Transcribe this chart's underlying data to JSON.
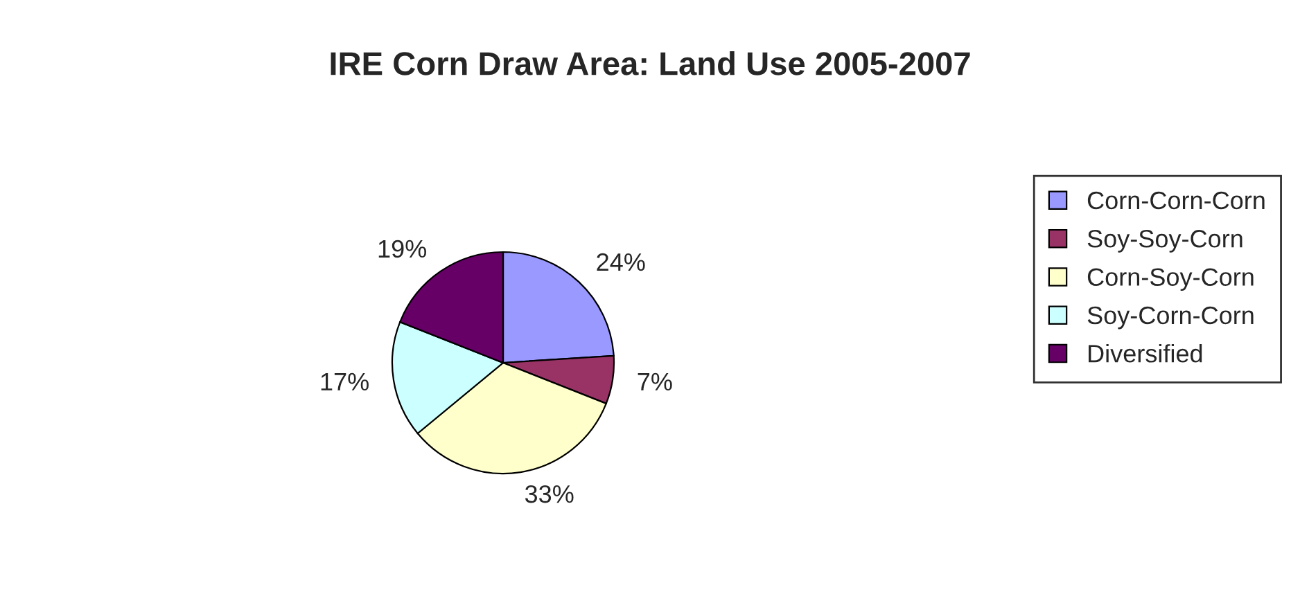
{
  "chart_data": {
    "type": "pie",
    "title": "IRE Corn Draw Area: Land Use 2005-2007",
    "categories": [
      "Corn-Corn-Corn",
      "Soy-Soy-Corn",
      "Corn-Soy-Corn",
      "Soy-Corn-Corn",
      "Diversified"
    ],
    "values": [
      24,
      7,
      33,
      17,
      19
    ],
    "value_labels": [
      "24%",
      "7%",
      "33%",
      "17%",
      "19%"
    ],
    "colors": [
      "#9999ff",
      "#993366",
      "#ffffcc",
      "#ccffff",
      "#660066"
    ],
    "legend": "right"
  }
}
